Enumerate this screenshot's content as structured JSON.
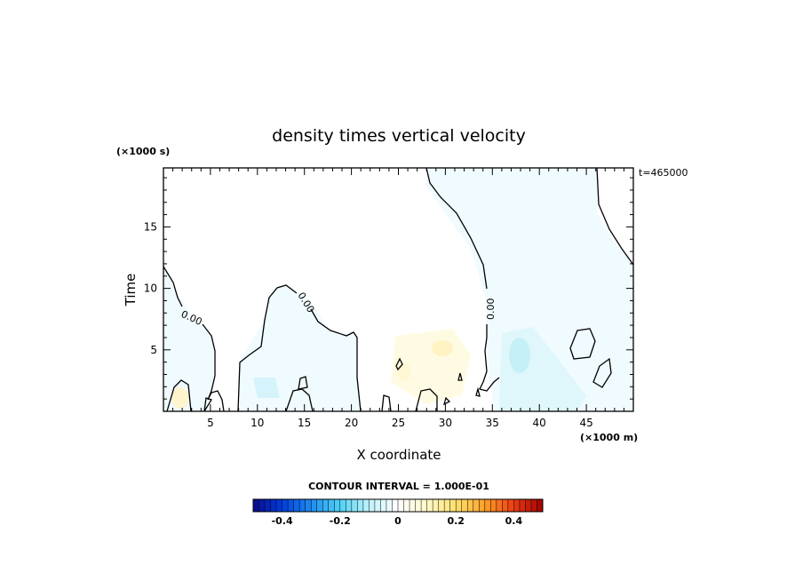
{
  "chart_data": {
    "type": "contour",
    "title": "density times vertical velocity",
    "xlabel": "X coordinate",
    "ylabel": "Time",
    "x_unit": "(×1000 m)",
    "y_unit": "(×1000 s)",
    "time_label": "t=465000",
    "xlim": [
      0,
      50
    ],
    "ylim": [
      0,
      19.8
    ],
    "x_ticks": [
      5,
      10,
      15,
      20,
      25,
      30,
      35,
      40,
      45
    ],
    "y_ticks": [
      5,
      10,
      15
    ],
    "contour_interval_text": "CONTOUR INTERVAL = 1.000E-01",
    "contour_labels": [
      "0.00",
      "0.00",
      "0.00"
    ],
    "colorbar": {
      "range": [
        -0.5,
        0.5
      ],
      "ticks": [
        "-0.4",
        "-0.2",
        "0",
        "0.2",
        "0.4"
      ],
      "low_color": "#0a0a8c",
      "high_color": "#a00000"
    }
  }
}
